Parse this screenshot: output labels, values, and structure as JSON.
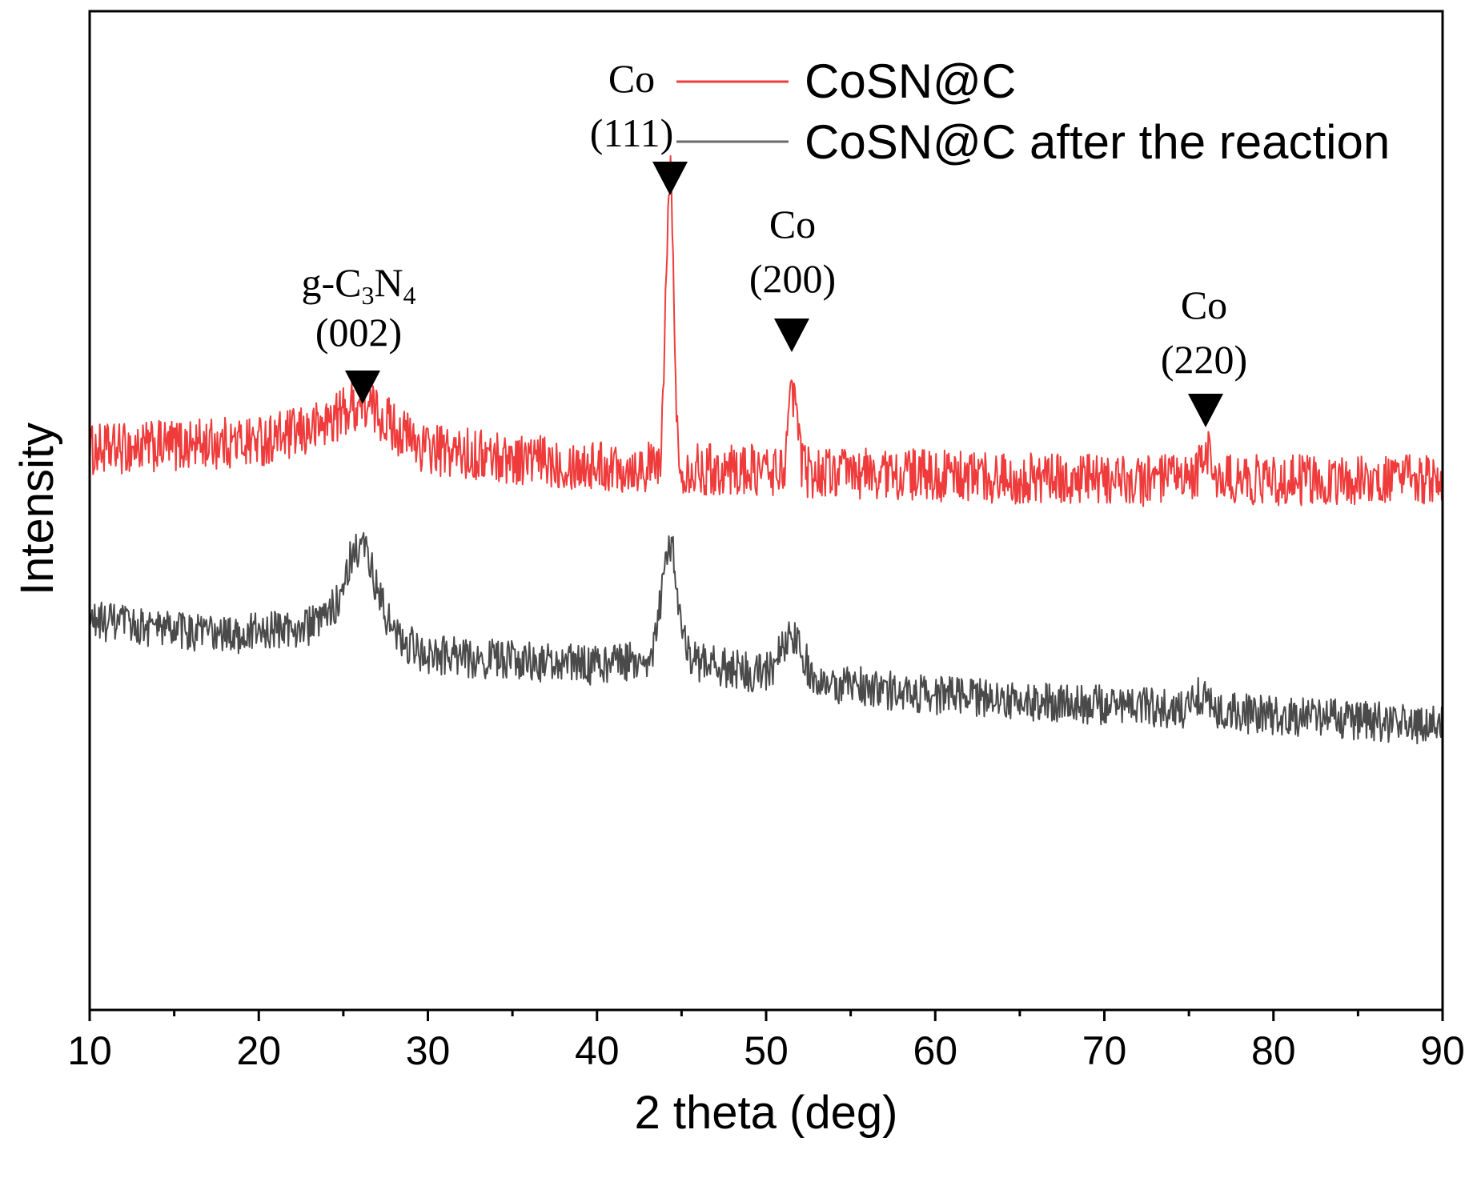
{
  "chart_data": {
    "type": "line",
    "title": "",
    "xlabel": "2 theta (deg)",
    "ylabel": "Intensity",
    "xlim": [
      10,
      90
    ],
    "ylim": [
      0,
      100
    ],
    "grid": false,
    "legend_position": "top-right",
    "x_ticks": [
      "10",
      "20",
      "30",
      "40",
      "50",
      "60",
      "70",
      "80",
      "90"
    ],
    "series": [
      {
        "name": "CoSN@C",
        "color": "#ef3b3b",
        "baseline": [
          [
            10,
            56.0
          ],
          [
            20,
            57.0
          ],
          [
            26,
            58.5
          ],
          [
            30,
            56.0
          ],
          [
            40,
            54.5
          ],
          [
            50,
            54.0
          ],
          [
            60,
            53.5
          ],
          [
            70,
            53.0
          ],
          [
            80,
            53.0
          ],
          [
            90,
            53.0
          ]
        ],
        "noise_amplitude": 2.6,
        "peaks": [
          {
            "x": 26.2,
            "height": 2.2,
            "width": 1.6
          },
          {
            "x": 44.3,
            "height": 30.0,
            "width": 0.22
          },
          {
            "x": 51.6,
            "height": 8.0,
            "width": 0.25
          },
          {
            "x": 76.0,
            "height": 3.0,
            "width": 0.3
          }
        ]
      },
      {
        "name": "CoSN@C after the reaction",
        "color": "#4a4a4a",
        "baseline": [
          [
            10,
            39.0
          ],
          [
            18,
            37.5
          ],
          [
            26,
            39.0
          ],
          [
            30,
            35.5
          ],
          [
            40,
            34.5
          ],
          [
            44,
            35.5
          ],
          [
            50,
            33.5
          ],
          [
            60,
            31.5
          ],
          [
            70,
            30.5
          ],
          [
            80,
            29.5
          ],
          [
            90,
            28.5
          ]
        ],
        "noise_amplitude": 2.0,
        "peaks": [
          {
            "x": 26.0,
            "height": 7.5,
            "width": 0.9
          },
          {
            "x": 44.3,
            "height": 11.5,
            "width": 0.45
          },
          {
            "x": 51.5,
            "height": 3.8,
            "width": 0.7
          },
          {
            "x": 75.8,
            "height": 1.5,
            "width": 0.5
          }
        ]
      }
    ],
    "annotations": [
      {
        "id": "g-c3n4",
        "lines": [
          "g-C3N4",
          "(002)"
        ],
        "marker_x": 26.2
      },
      {
        "id": "co-111",
        "lines": [
          "Co",
          "(111)"
        ],
        "marker_x": 44.3
      },
      {
        "id": "co-200",
        "lines": [
          "Co",
          "(200)"
        ],
        "marker_x": 51.6
      },
      {
        "id": "co-220",
        "lines": [
          "Co",
          "(220)"
        ],
        "marker_x": 76.0
      }
    ]
  },
  "labels": {
    "g_prefix": "g-C",
    "sub3": "3",
    "n_letter": "N",
    "sub4": "4",
    "peak_002": "(002)",
    "co_111": "Co",
    "peak_111": "(111)",
    "co_200": "Co",
    "peak_200": "(200)",
    "co_220": "Co",
    "peak_220": "(220)",
    "legend_1": "CoSN@C",
    "legend_2": "CoSN@C after the reaction"
  }
}
